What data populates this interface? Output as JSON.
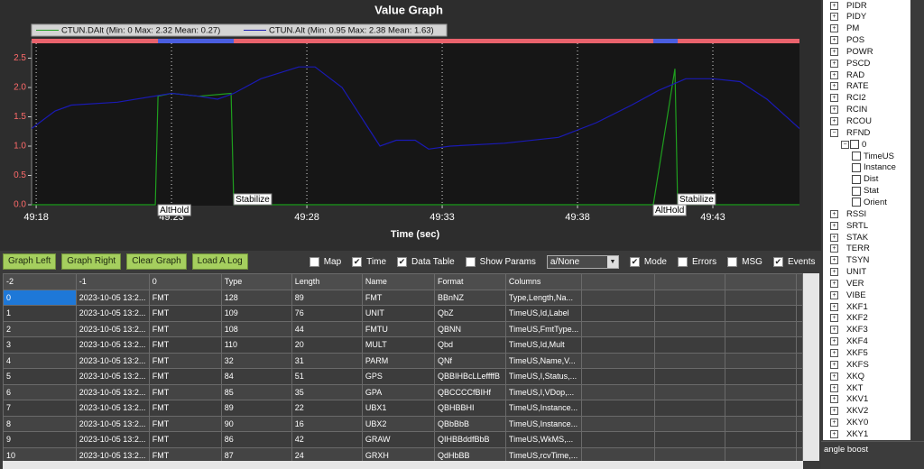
{
  "chart_data": {
    "type": "line",
    "title": "Value Graph",
    "x_label": "Time (sec)",
    "series": [
      {
        "name": "CTUN.DAlt  (Min: 0 Max: 2.32 Mean: 0.27)",
        "color": "#1f9f1f",
        "x": [
          2957.83,
          2962.4,
          2962.5,
          2963,
          2964,
          2965.2,
          2965.3,
          2980.8,
          2981.6,
          2981.7,
          2986.2
        ],
        "values": [
          0,
          0,
          1.85,
          1.9,
          1.85,
          1.9,
          0,
          0,
          2.32,
          0,
          0
        ]
      },
      {
        "name": "CTUN.Alt  (Min: 0.95 Max: 2.38 Mean: 1.63)",
        "color": "#1a1ab4",
        "x": [
          2957.83,
          2958.7,
          2959.3,
          2961,
          2963,
          2964,
          2964.7,
          2965.3,
          2966.3,
          2967.7,
          2968.3,
          2969.3,
          2970,
          2970.7,
          2971.3,
          2972,
          2972.5,
          2973.3,
          2975.3,
          2977.3,
          2978.7,
          2980,
          2981,
          2982,
          2983,
          2984,
          2985,
          2986.2
        ],
        "values": [
          1.3,
          1.6,
          1.7,
          1.75,
          1.9,
          1.85,
          1.8,
          1.9,
          2.15,
          2.35,
          2.35,
          2.0,
          1.5,
          1.0,
          1.1,
          1.1,
          0.95,
          1.0,
          1.05,
          1.15,
          1.4,
          1.7,
          1.95,
          2.15,
          2.15,
          2.1,
          1.8,
          1.3
        ]
      }
    ],
    "annotations": [
      {
        "text": "AltHold",
        "x": 2962.5
      },
      {
        "text": "Stabilize",
        "x": 2965.3
      },
      {
        "text": "AltHold",
        "x": 2980.8
      },
      {
        "text": "Stabilize",
        "x": 2981.7
      }
    ],
    "xlim": [
      2957.83,
      2986.2
    ],
    "xticks": [
      {
        "value": 2958,
        "label": "49:18"
      },
      {
        "value": 2963,
        "label": "49:23"
      },
      {
        "value": 2968,
        "label": "49:28"
      },
      {
        "value": 2973,
        "label": "49:33"
      },
      {
        "value": 2978,
        "label": "49:38"
      },
      {
        "value": 2983,
        "label": "49:43"
      }
    ],
    "ylim": [
      0,
      2.8
    ],
    "yticks": [
      {
        "value": 0,
        "label": "0.0"
      },
      {
        "value": 0.5,
        "label": "0.5"
      },
      {
        "value": 1,
        "label": "1.0"
      },
      {
        "value": 1.5,
        "label": "1.5"
      },
      {
        "value": 2,
        "label": "2.0"
      },
      {
        "value": 2.5,
        "label": "2.5"
      }
    ],
    "grid": "x"
  },
  "toolbar": {
    "buttons": [
      "Graph Left",
      "Graph Right",
      "Clear Graph",
      "Load A Log"
    ],
    "checkboxes_before": [
      {
        "label": "Map",
        "checked": false
      },
      {
        "label": "Time",
        "checked": true
      },
      {
        "label": "Data Table",
        "checked": true
      },
      {
        "label": "Show Params",
        "checked": false
      }
    ],
    "dropdown": "a/None",
    "checkboxes_after": [
      {
        "label": "Mode",
        "checked": true
      },
      {
        "label": "Errors",
        "checked": false
      },
      {
        "label": "MSG",
        "checked": false
      },
      {
        "label": "Events",
        "checked": true
      }
    ]
  },
  "table": {
    "columns": [
      "-2",
      "-1",
      "0",
      "Type",
      "Length",
      "Name",
      "Format",
      "Columns"
    ],
    "rows": [
      [
        0,
        "2023-10-05 13:2...",
        "FMT",
        128,
        89,
        "FMT",
        "BBnNZ",
        "Type,Length,Na..."
      ],
      [
        1,
        "2023-10-05 13:2...",
        "FMT",
        109,
        76,
        "UNIT",
        "QbZ",
        "TimeUS,Id,Label"
      ],
      [
        2,
        "2023-10-05 13:2...",
        "FMT",
        108,
        44,
        "FMTU",
        "QBNN",
        "TimeUS,FmtType..."
      ],
      [
        3,
        "2023-10-05 13:2...",
        "FMT",
        110,
        20,
        "MULT",
        "Qbd",
        "TimeUS,Id,Mult"
      ],
      [
        4,
        "2023-10-05 13:2...",
        "FMT",
        32,
        31,
        "PARM",
        "QNf",
        "TimeUS,Name,V..."
      ],
      [
        5,
        "2023-10-05 13:2...",
        "FMT",
        84,
        51,
        "GPS",
        "QBBIHBcLLeffffB",
        "TimeUS,I,Status,..."
      ],
      [
        6,
        "2023-10-05 13:2...",
        "FMT",
        85,
        35,
        "GPA",
        "QBCCCCfBIHf",
        "TimeUS,I,VDop,..."
      ],
      [
        7,
        "2023-10-05 13:2...",
        "FMT",
        89,
        22,
        "UBX1",
        "QBHBBHI",
        "TimeUS,Instance..."
      ],
      [
        8,
        "2023-10-05 13:2...",
        "FMT",
        90,
        16,
        "UBX2",
        "QBbBbB",
        "TimeUS,Instance..."
      ],
      [
        9,
        "2023-10-05 13:2...",
        "FMT",
        86,
        42,
        "GRAW",
        "QIHBBddfBbB",
        "TimeUS,WkMS,..."
      ],
      [
        10,
        "2023-10-05 13:2...",
        "FMT",
        87,
        24,
        "GRXH",
        "QdHbBB",
        "TimeUS,rcvTime,..."
      ]
    ]
  },
  "tree": {
    "items": [
      {
        "label": "PIDR"
      },
      {
        "label": "PIDY"
      },
      {
        "label": "PM"
      },
      {
        "label": "POS"
      },
      {
        "label": "POWR"
      },
      {
        "label": "PSCD"
      },
      {
        "label": "RAD"
      },
      {
        "label": "RATE"
      },
      {
        "label": "RCI2"
      },
      {
        "label": "RCIN"
      },
      {
        "label": "RCOU"
      },
      {
        "label": "RFND",
        "children": [
          {
            "label": "0",
            "children": [
              {
                "label": "TimeUS"
              },
              {
                "label": "Instance"
              },
              {
                "label": "Dist"
              },
              {
                "label": "Stat"
              },
              {
                "label": "Orient"
              }
            ]
          }
        ]
      },
      {
        "label": "RSSI"
      },
      {
        "label": "SRTL"
      },
      {
        "label": "STAK"
      },
      {
        "label": "TERR"
      },
      {
        "label": "TSYN"
      },
      {
        "label": "UNIT"
      },
      {
        "label": "VER"
      },
      {
        "label": "VIBE"
      },
      {
        "label": "XKF1"
      },
      {
        "label": "XKF2"
      },
      {
        "label": "XKF3"
      },
      {
        "label": "XKF4"
      },
      {
        "label": "XKF5"
      },
      {
        "label": "XKFS"
      },
      {
        "label": "XKQ"
      },
      {
        "label": "XKT"
      },
      {
        "label": "XKV1"
      },
      {
        "label": "XKV2"
      },
      {
        "label": "XKY0"
      },
      {
        "label": "XKY1"
      }
    ]
  },
  "status": "angle boost"
}
